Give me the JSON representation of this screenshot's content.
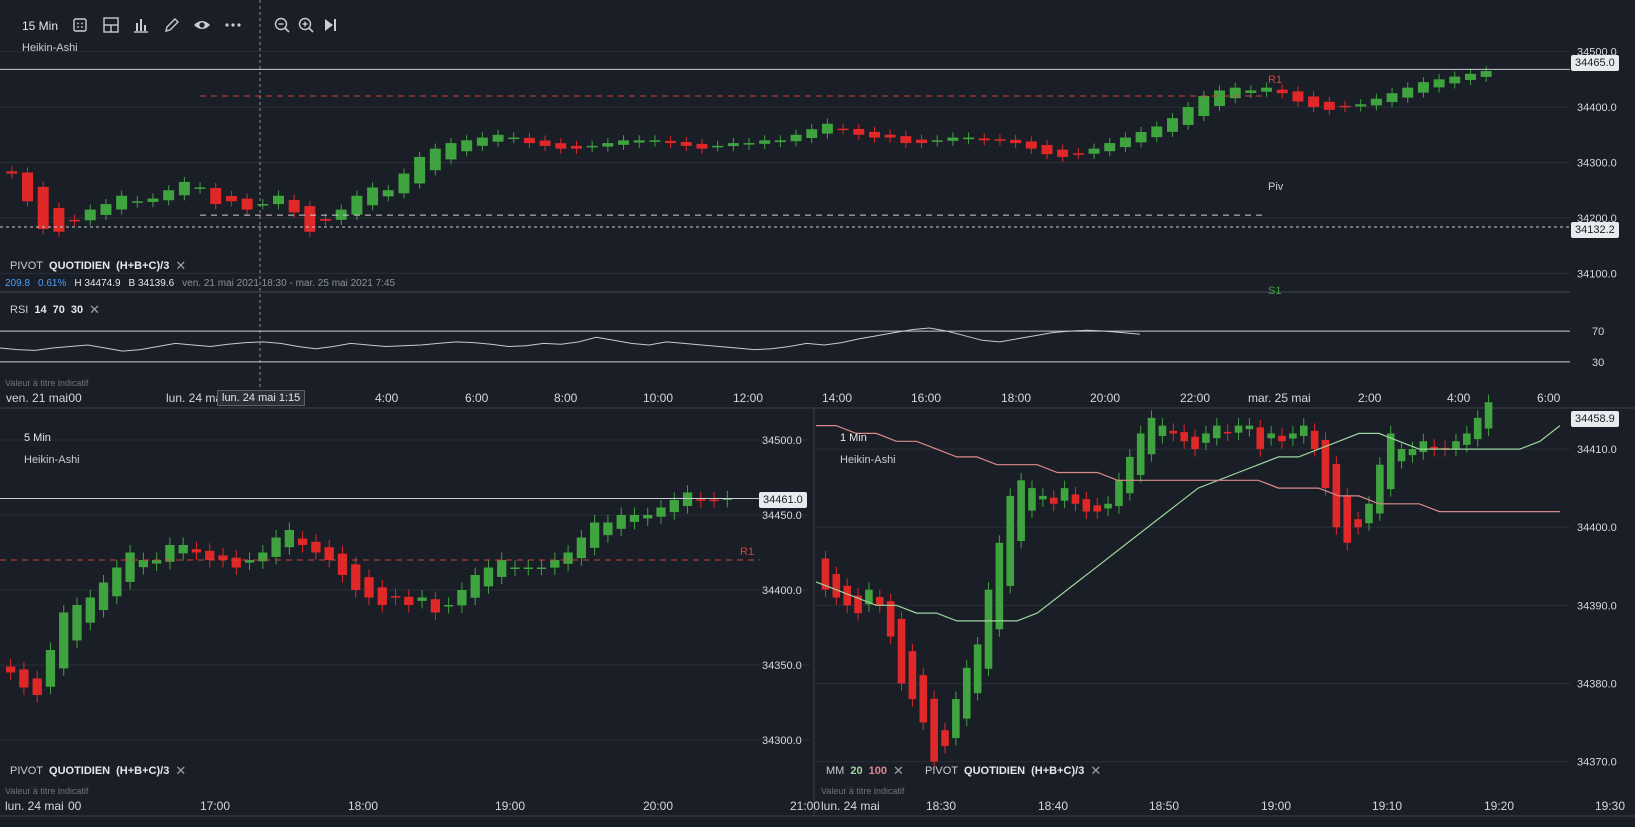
{
  "toolbar": {
    "interval": "15 Min",
    "icons": [
      "grid-icon",
      "layout-icon",
      "bar-chart-icon",
      "pencil-icon",
      "eye-icon",
      "more-icon",
      "zoom-out-icon",
      "zoom-in-icon",
      "jump-to-end-icon"
    ]
  },
  "colors": {
    "up": "#3fa33f",
    "down": "#e02828",
    "grid": "#2a2f38",
    "bg": "#1a1e26",
    "r1": "#d04040",
    "piv": "#d0d0d0",
    "rsi": "#c9c9c9",
    "ma20": "#9fd49f",
    "ma100": "#d98a8a"
  },
  "top": {
    "chart_label": "Heikin-Ashi",
    "pivot": {
      "name": "PIVOT",
      "period": "QUOTIDIEN",
      "formula": "(H+B+C)/3"
    },
    "stats": {
      "change": "209.8",
      "change_pct": "0.61%",
      "high": "H 34474.9",
      "low": "B 34139.6",
      "range": "ven. 21 mai 2021 18:30 - mar. 25 mai 2021 7:45"
    },
    "rsi": {
      "name": "RSI",
      "p1": "14",
      "p2": "70",
      "p3": "30",
      "level_70": "70",
      "level_30": "30"
    },
    "footnote": "Valeur à titre indicatif",
    "last_price": "34465.0",
    "crosshair_price": "34132.2",
    "crosshair_time": "lun. 24 mai 1:15",
    "pivot_labels": {
      "r1": "R1",
      "piv": "Piv",
      "s1": "S1"
    }
  },
  "left": {
    "interval": "5 Min",
    "chart_label": "Heikin-Ashi",
    "pivot": {
      "name": "PIVOT",
      "period": "QUOTIDIEN",
      "formula": "(H+B+C)/3"
    },
    "footnote": "Valeur à titre indicatif",
    "last_price": "34461.0",
    "r1_label": "R1"
  },
  "right": {
    "interval": "1 Min",
    "chart_label": "Heikin-Ashi",
    "ma": {
      "name": "MM",
      "p1": "20",
      "p2": "100"
    },
    "pivot": {
      "name": "PIVOT",
      "period": "QUOTIDIEN",
      "formula": "(H+B+C)/3"
    },
    "footnote": "Valeur à titre indicatif",
    "last_price": "34458.9"
  },
  "chart_data": [
    {
      "type": "candlestick",
      "title": "Heikin-Ashi 15 Min",
      "y_ticks": [
        34500.0,
        34400.0,
        34300.0,
        34200.0,
        34100.0
      ],
      "y_tick_labels": [
        "34500.0",
        "34400.0",
        "34300.0",
        "34200.0",
        "34100.0"
      ],
      "ylim": [
        34070,
        34530
      ],
      "x_tick_labels": [
        "ven. 21 mai",
        "lun. 24 mai",
        "4:00",
        "6:00",
        "8:00",
        "10:00",
        "12:00",
        "14:00",
        "16:00",
        "18:00",
        "20:00",
        "22:00",
        "mar. 25 mai",
        "2:00",
        "4:00",
        "6:00"
      ],
      "x_tick_label_prefix": ":00",
      "pivot_levels": {
        "R1": 34420,
        "Piv": 34205
      },
      "close": [
        34280,
        34230,
        34180,
        34175,
        34195,
        34215,
        34225,
        34240,
        34230,
        34235,
        34250,
        34265,
        34255,
        34225,
        34230,
        34215,
        34225,
        34240,
        34210,
        34175,
        34195,
        34215,
        34240,
        34255,
        34250,
        34280,
        34310,
        34325,
        34335,
        34340,
        34345,
        34350,
        34345,
        34335,
        34330,
        34325,
        34325,
        34330,
        34335,
        34340,
        34340,
        34340,
        34335,
        34330,
        34325,
        34330,
        34335,
        34335,
        34340,
        34340,
        34350,
        34360,
        34370,
        34360,
        34350,
        34345,
        34345,
        34335,
        34335,
        34340,
        34345,
        34345,
        34340,
        34340,
        34335,
        34325,
        34315,
        34310,
        34315,
        34325,
        34335,
        34345,
        34355,
        34365,
        34380,
        34400,
        34420,
        34430,
        34435,
        34430,
        34435,
        34425,
        34410,
        34400,
        34395,
        34400,
        34405,
        34415,
        34425,
        34435,
        34445,
        34450,
        34455,
        34460,
        34465
      ]
    },
    {
      "type": "line",
      "title": "RSI 14 70 30",
      "ylim": [
        0,
        100
      ],
      "levels": [
        70,
        30
      ],
      "values": [
        48,
        46,
        45,
        48,
        50,
        52,
        48,
        44,
        46,
        50,
        54,
        52,
        50,
        53,
        55,
        56,
        54,
        50,
        47,
        50,
        54,
        52,
        50,
        51,
        52,
        54,
        56,
        55,
        53,
        50,
        51,
        54,
        53,
        56,
        62,
        58,
        54,
        52,
        56,
        54,
        52,
        50,
        48,
        46,
        47,
        50,
        54,
        52,
        55,
        60,
        64,
        68,
        72,
        74,
        70,
        64,
        58,
        56,
        60,
        64,
        68,
        70,
        71,
        70,
        68,
        66
      ]
    },
    {
      "type": "candlestick",
      "title": "Heikin-Ashi 5 Min",
      "y_ticks": [
        34500.0,
        34450.0,
        34400.0,
        34350.0,
        34300.0
      ],
      "y_tick_labels": [
        "34500.0",
        "34450.0",
        "34400.0",
        "34350.0",
        "34300.0"
      ],
      "ylim": [
        34270,
        34520
      ],
      "x_tick_labels": [
        "lun. 24 mai",
        "17:00",
        "18:00",
        "19:00",
        "20:00",
        "21:00"
      ],
      "x_tick_label_prefix": "00",
      "pivot_levels": {
        "R1": 34420
      },
      "close": [
        34345,
        34335,
        34330,
        34360,
        34385,
        34390,
        34395,
        34405,
        34415,
        34425,
        34420,
        34420,
        34430,
        34430,
        34425,
        34420,
        34420,
        34415,
        34420,
        34425,
        34435,
        34440,
        34430,
        34425,
        34420,
        34410,
        34400,
        34395,
        34390,
        34395,
        34390,
        34395,
        34385,
        34390,
        34400,
        34410,
        34415,
        34420,
        34415,
        34415,
        34415,
        34420,
        34425,
        34435,
        34445,
        34445,
        34450,
        34450,
        34450,
        34455,
        34460,
        34465,
        34460,
        34460,
        34461
      ]
    },
    {
      "type": "candlestick",
      "title": "Heikin-Ashi 1 Min",
      "y_ticks": [
        34410.0,
        34400.0,
        34390.0,
        34380.0,
        34370.0
      ],
      "y_tick_labels": [
        "34410.0",
        "34400.0",
        "34390.0",
        "34380.0",
        "34370.0"
      ],
      "ylim": [
        34367,
        34415
      ],
      "x_tick_labels": [
        "lun. 24 mai",
        "18:30",
        "18:40",
        "18:50",
        "19:00",
        "19:10",
        "19:20",
        "19:30"
      ],
      "series": [
        {
          "name": "MM 20",
          "values": [
            34393,
            34392,
            34391,
            34390,
            34390,
            34389,
            34389,
            34388,
            34388,
            34388,
            34388,
            34389,
            34391,
            34393,
            34395,
            34397,
            34399,
            34401,
            34403,
            34405,
            34406,
            34407,
            34408,
            34409,
            34409,
            34410,
            34411,
            34412,
            34412,
            34411,
            34410,
            34410,
            34410,
            34410,
            34410,
            34410,
            34411,
            34413
          ]
        },
        {
          "name": "MM 100",
          "values": [
            34413,
            34413,
            34412,
            34412,
            34411,
            34411,
            34410,
            34409,
            34409,
            34408,
            34408,
            34408,
            34407,
            34407,
            34407,
            34406,
            34406,
            34406,
            34406,
            34406,
            34406,
            34406,
            34406,
            34405,
            34405,
            34405,
            34404,
            34404,
            34403,
            34403,
            34403,
            34402,
            34402,
            34402,
            34402,
            34402,
            34402,
            34402
          ]
        }
      ],
      "close": [
        34392,
        34391,
        34390,
        34389,
        34392,
        34390,
        34386,
        34380,
        34378,
        34375,
        34370,
        34372,
        34378,
        34382,
        34385,
        34392,
        34398,
        34404,
        34406,
        34405,
        34404,
        34403,
        34405,
        34403,
        34402,
        34402,
        34403,
        34406,
        34409,
        34412,
        34414,
        34413,
        34412,
        34411,
        34410,
        34412,
        34413,
        34412,
        34413,
        34413,
        34410,
        34412,
        34411,
        34412,
        34413,
        34410,
        34405,
        34400,
        34398,
        34400,
        34403,
        34408,
        34412,
        34410,
        34410,
        34411,
        34410,
        34410,
        34411,
        34412,
        34414,
        34416
      ]
    }
  ]
}
